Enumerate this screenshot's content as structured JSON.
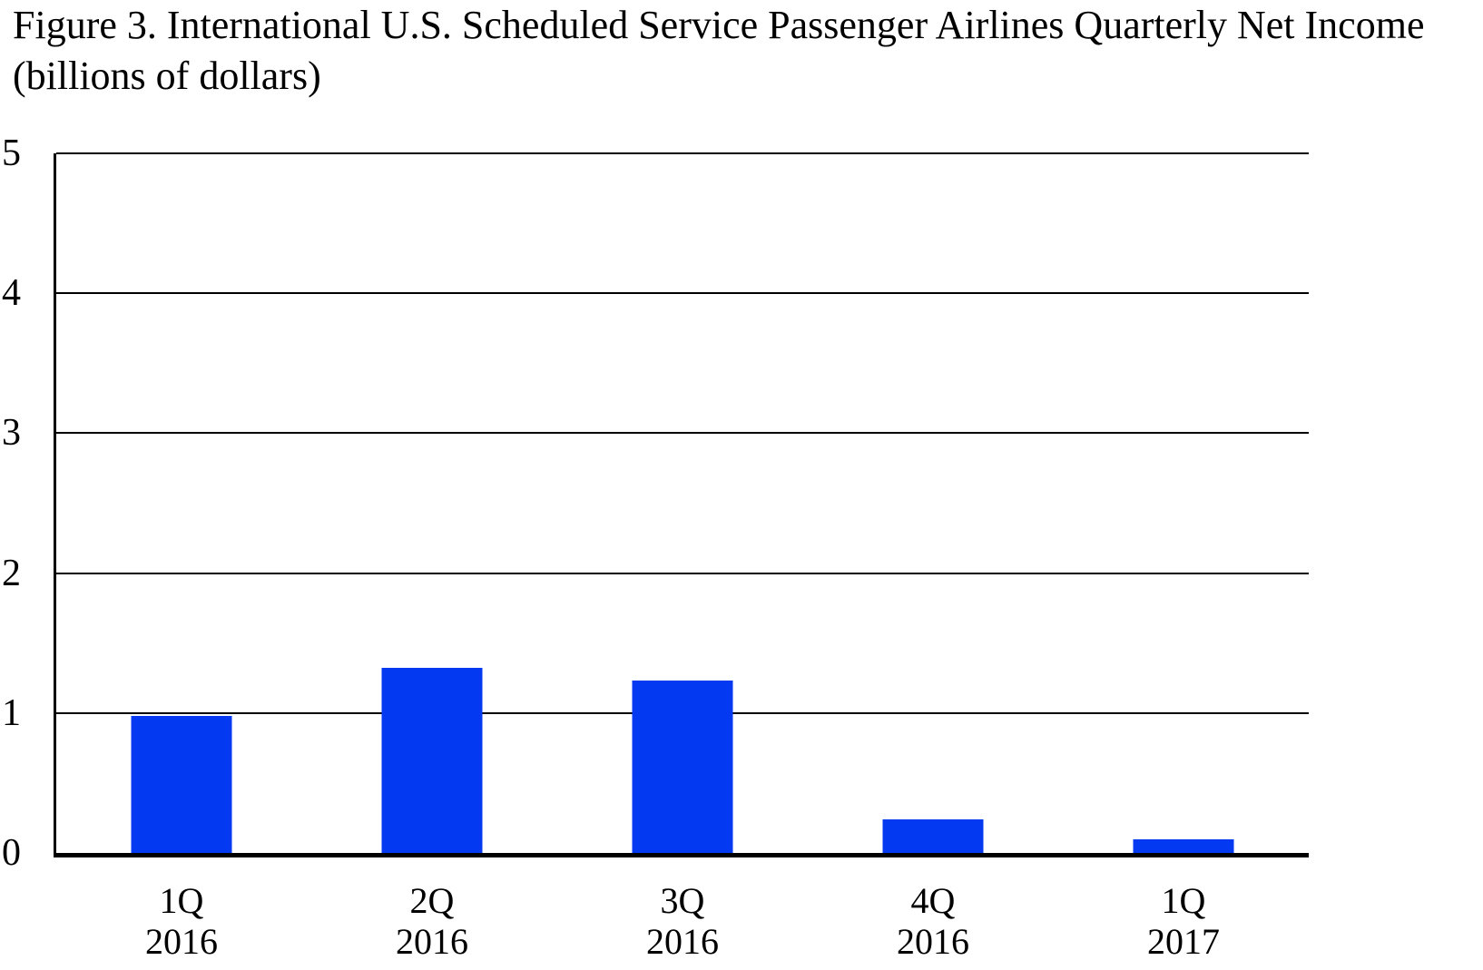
{
  "title": {
    "line1": "Figure 3. International U.S. Scheduled Service Passenger Airlines Quarterly Net Income",
    "line2": "(billions of dollars)"
  },
  "chart_data": {
    "type": "bar",
    "title": "Figure 3. International U.S. Scheduled Service Passenger Airlines Quarterly Net Income (billions of dollars)",
    "categories": [
      "1Q 2016",
      "2Q 2016",
      "3Q 2016",
      "4Q 2016",
      "1Q 2017"
    ],
    "category_lines": [
      [
        "1Q",
        "2016"
      ],
      [
        "2Q",
        "2016"
      ],
      [
        "3Q",
        "2016"
      ],
      [
        "4Q",
        "2016"
      ],
      [
        "1Q",
        "2017"
      ]
    ],
    "values": [
      0.98,
      1.32,
      1.23,
      0.24,
      0.1
    ],
    "xlabel": "",
    "ylabel": "billions of dollars",
    "ylim": [
      0,
      5
    ],
    "y_ticks": [
      5,
      4,
      3,
      2,
      1,
      0
    ],
    "grid": "horizontal",
    "legend": "none",
    "bar_color": "#0339F0",
    "axis_color": "#000000"
  }
}
